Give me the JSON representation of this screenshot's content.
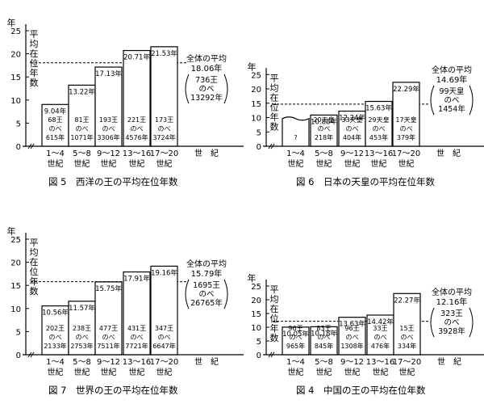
{
  "chart_data": [
    {
      "type": "bar",
      "title": "図 5　西洋の王の平均在位年数",
      "ylabel": "平均在位年数",
      "y_unit": "年",
      "ylim": [
        0,
        25
      ],
      "y_ticks": [
        0,
        5,
        10,
        15,
        20,
        25
      ],
      "categories": [
        "1～4\n世紀",
        "5～8\n世紀",
        "9～12\n世紀",
        "13～16\n世紀",
        "17～20\n世紀"
      ],
      "values": [
        9.04,
        13.22,
        17.13,
        20.71,
        21.53
      ],
      "value_labels": [
        "9.04年",
        "13.22年",
        "17.13年",
        "20.71年",
        "21.53年"
      ],
      "bar_details": [
        [
          "68王",
          "のべ",
          "615年"
        ],
        [
          "81王",
          "のべ",
          "1071年"
        ],
        [
          "193王",
          "のべ",
          "3306年"
        ],
        [
          "221王",
          "のべ",
          "4576年"
        ],
        [
          "173王",
          "のべ",
          "3724年"
        ]
      ],
      "average": {
        "value": 18.06,
        "label": "全体の平均",
        "value_label": "18.06年",
        "detail": [
          "736王",
          "のべ",
          "13292年"
        ]
      },
      "x_extra_label": "世　紀",
      "axis_break": true
    },
    {
      "type": "bar",
      "title": "図 6　日本の天皇の平均在位年数",
      "ylabel": "平均在位年数",
      "y_unit": "年",
      "ylim": [
        0,
        25
      ],
      "y_ticks": [
        0,
        5,
        10,
        15,
        20,
        25
      ],
      "categories": [
        "1～4\n世紀",
        "5～8\n世紀",
        "9～12\n世紀",
        "13～16\n世紀",
        "17～20\n世紀"
      ],
      "values": [
        10.2,
        10.88,
        12.24,
        15.63,
        22.29
      ],
      "value_labels": [
        "",
        "10.88年",
        "12.24年",
        "15.63年",
        "22.29年"
      ],
      "bar_details": [
        [
          "?"
        ],
        [
          "20天皇",
          "のべ",
          "218年"
        ],
        [
          "33天皇",
          "のべ",
          "404年"
        ],
        [
          "29天皇",
          "のべ",
          "453年"
        ],
        [
          "17天皇",
          "のべ",
          "379年"
        ]
      ],
      "average": {
        "value": 14.69,
        "label": "全体の平均",
        "value_label": "14.69年",
        "detail": [
          "99天皇",
          "のべ",
          "1454年"
        ]
      },
      "x_extra_label": "世　紀",
      "axis_break": true,
      "first_bar_uncertain": true
    },
    {
      "type": "bar",
      "title": "図 7　世界の王の平均在位年数",
      "ylabel": "平均在位年数",
      "y_unit": "年",
      "ylim": [
        0,
        25
      ],
      "y_ticks": [
        0,
        5,
        10,
        15,
        20,
        25
      ],
      "categories": [
        "1～4\n世紀",
        "5～8\n世紀",
        "9～12\n世紀",
        "13～16\n世紀",
        "17～20\n世紀"
      ],
      "values": [
        10.56,
        11.57,
        15.75,
        17.91,
        19.16
      ],
      "value_labels": [
        "10.56年",
        "11.57年",
        "15.75年",
        "17.91年",
        "19.16年"
      ],
      "bar_details": [
        [
          "202王",
          "のべ",
          "2133年"
        ],
        [
          "238王",
          "のべ",
          "2753年"
        ],
        [
          "477王",
          "のべ",
          "7511年"
        ],
        [
          "431王",
          "のべ",
          "7721年"
        ],
        [
          "347王",
          "のべ",
          "6647年"
        ]
      ],
      "average": {
        "value": 15.79,
        "label": "全体の平均",
        "value_label": "15.79年",
        "detail": [
          "1695王",
          "のべ",
          "26765年"
        ]
      },
      "x_extra_label": "世　紀",
      "axis_break": true
    },
    {
      "type": "bar",
      "title": "図 4　中国の王の平均在位年数",
      "ylabel": "平均在位年数",
      "y_unit": "年",
      "ylim": [
        0,
        25
      ],
      "y_ticks": [
        0,
        5,
        10,
        15,
        20,
        25
      ],
      "categories": [
        "1～4\n世紀",
        "5～8\n世紀",
        "9～12\n世紀",
        "13～16\n世紀",
        "17～20\n世紀"
      ],
      "values": [
        10.05,
        10.18,
        13.63,
        14.42,
        22.27
      ],
      "value_labels": [
        "10.05年",
        "10.18年",
        "13.63年",
        "14.42年",
        "22.27年"
      ],
      "bar_details": [
        [
          "96王",
          "のべ",
          "965年"
        ],
        [
          "83王",
          "のべ",
          "845年"
        ],
        [
          "96王",
          "のべ",
          "1308年"
        ],
        [
          "33王",
          "のべ",
          "476年"
        ],
        [
          "15王",
          "のべ",
          "334年"
        ]
      ],
      "average": {
        "value": 12.16,
        "label": "全体の平均",
        "value_label": "12.16年",
        "detail": [
          "323王",
          "のべ",
          "3928年"
        ]
      },
      "x_extra_label": "世　紀",
      "axis_break": true
    }
  ]
}
